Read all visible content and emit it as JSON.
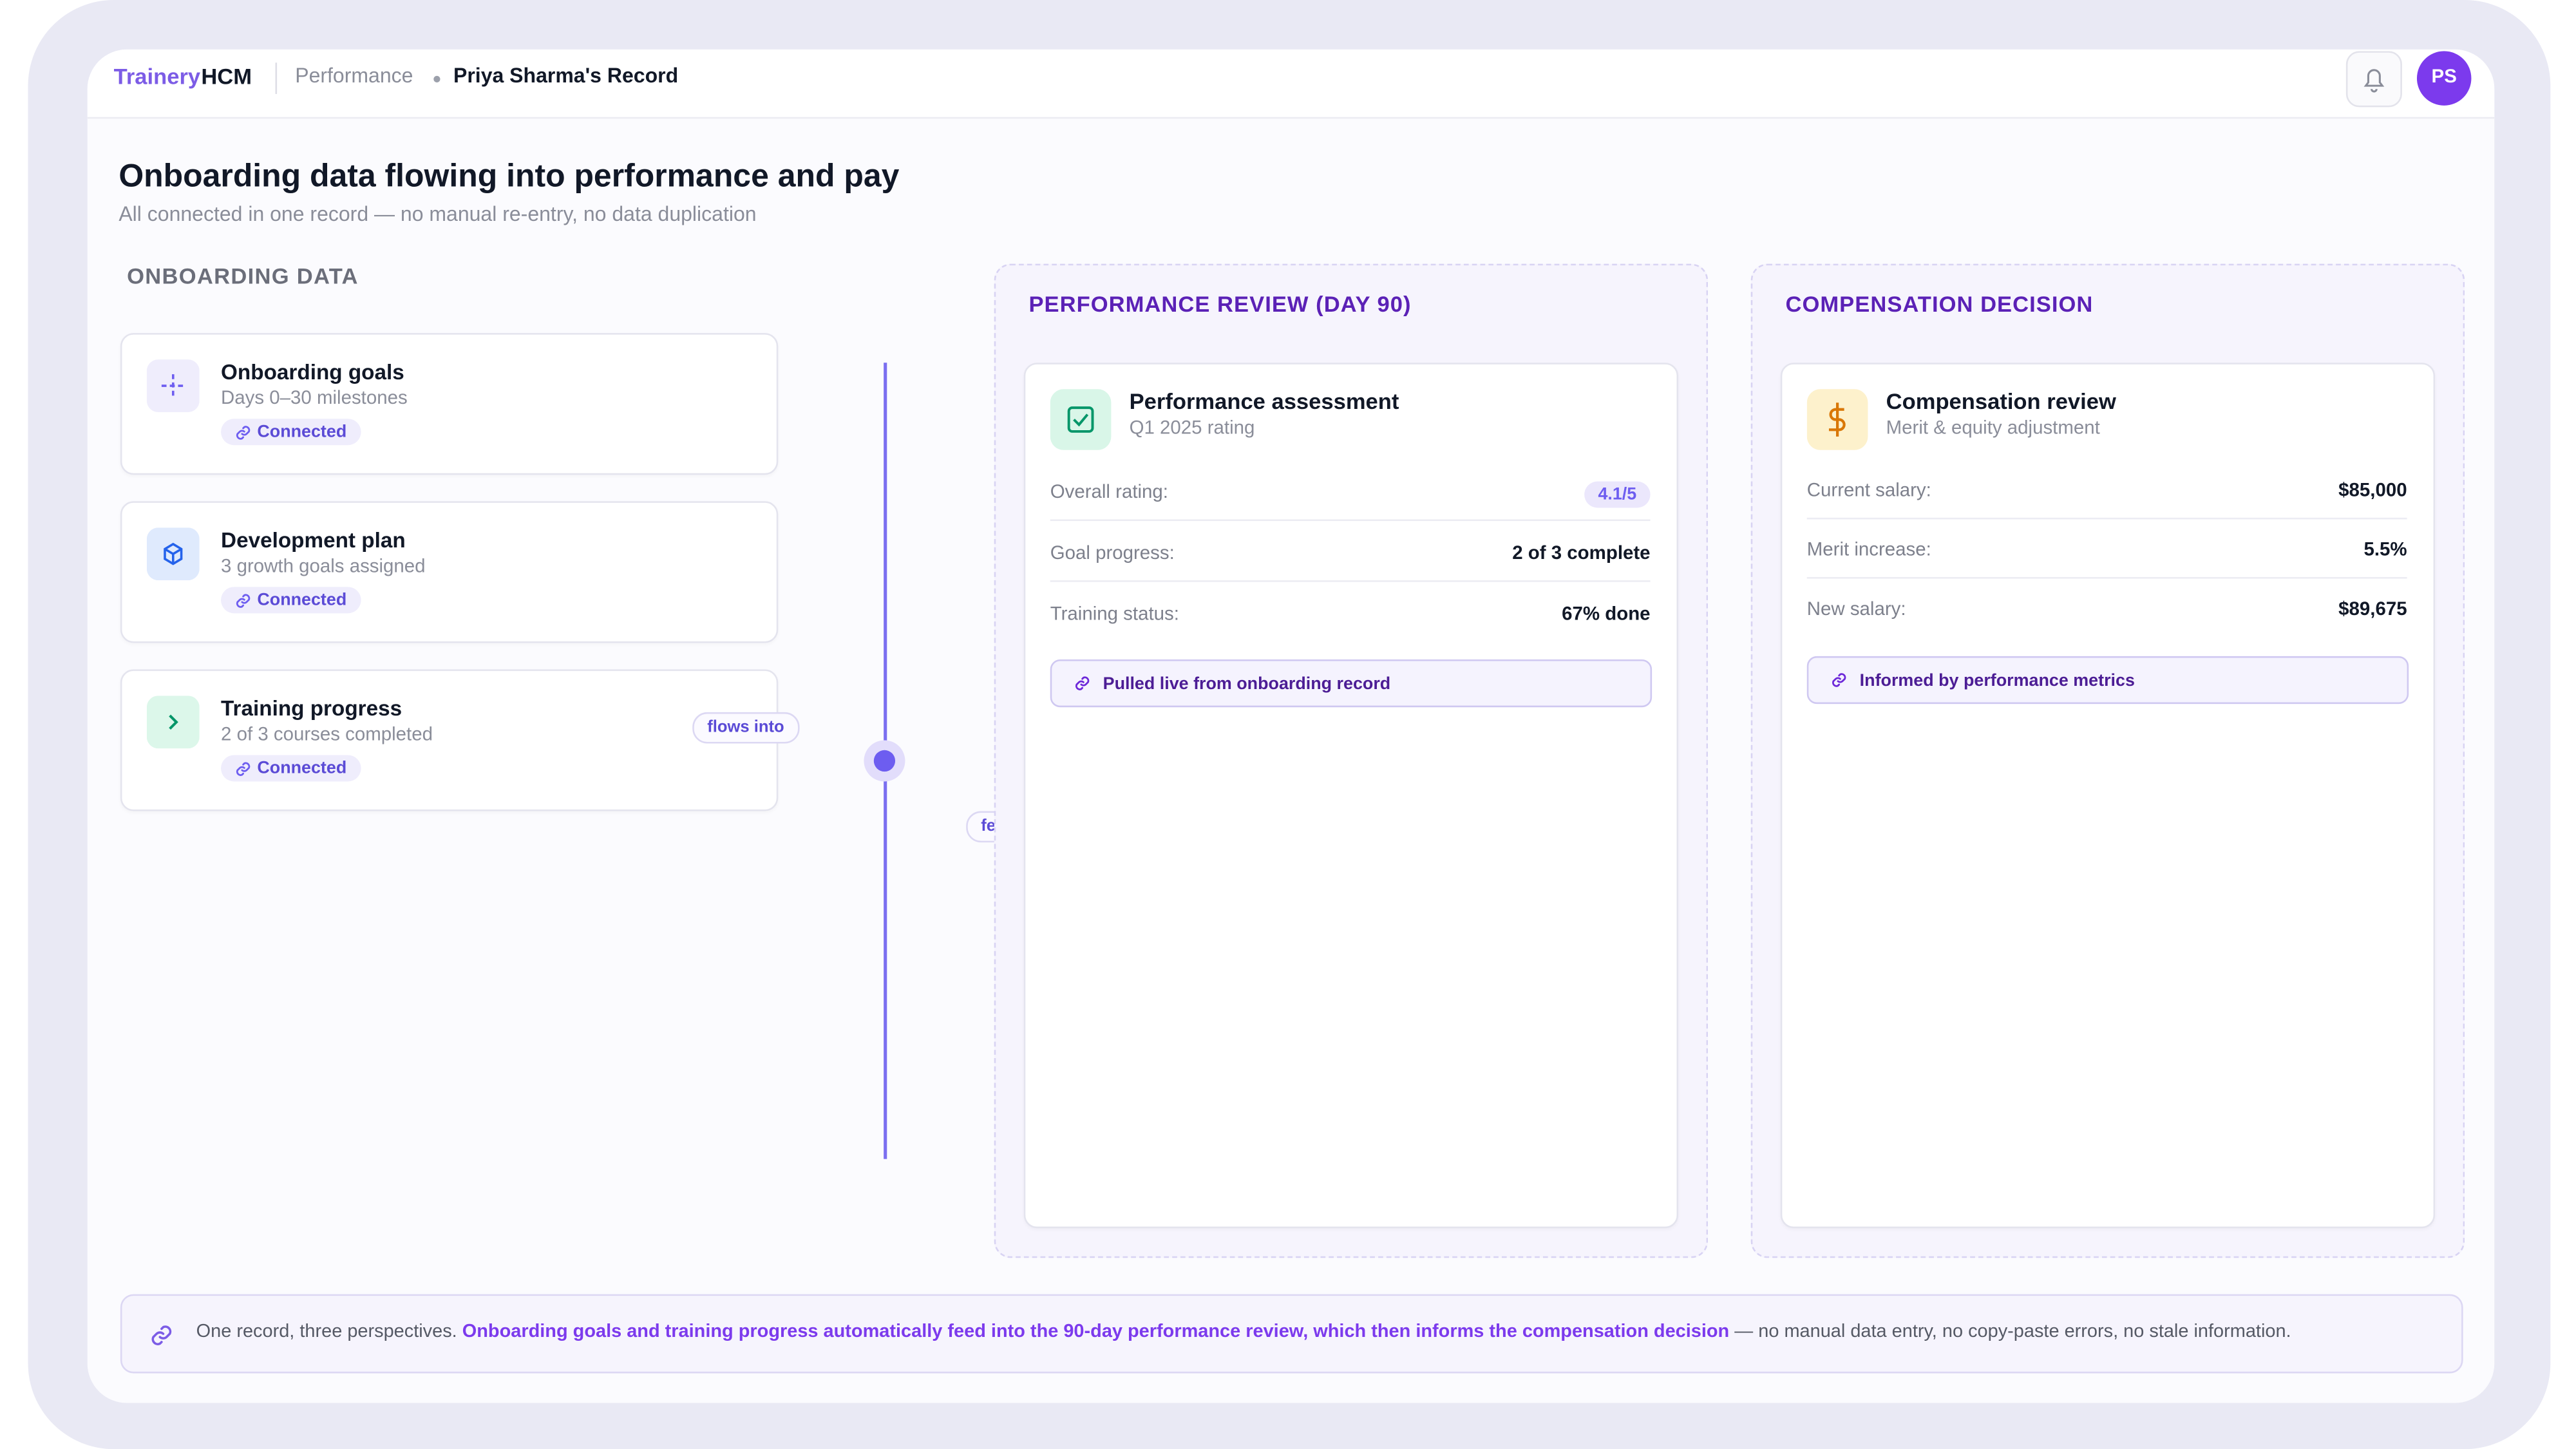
{
  "header": {
    "brand_left": "Trainery",
    "brand_right": "HCM",
    "breadcrumb": [
      "Performance",
      "Priya Sharma's Record"
    ],
    "avatar": "PS"
  },
  "page": {
    "title": "Onboarding data flowing into performance and pay",
    "subtitle": "All connected in one record — no manual re-entry, no data duplication"
  },
  "onboarding": {
    "heading": "ONBOARDING DATA",
    "cards": [
      {
        "title": "Onboarding goals",
        "subtitle": "Days 0–30 milestones",
        "badge": "Connected"
      },
      {
        "title": "Development plan",
        "subtitle": "3 growth goals assigned",
        "badge": "Connected"
      },
      {
        "title": "Training progress",
        "subtitle": "2 of 3 courses completed",
        "badge": "Connected"
      }
    ]
  },
  "connectors": {
    "flows": "flows into",
    "feeds": "feeds"
  },
  "performance": {
    "heading": "PERFORMANCE REVIEW (DAY 90)",
    "card_title": "Performance assessment",
    "card_subtitle": "Q1 2025 rating",
    "rows": [
      [
        "Overall rating:",
        "4.1/5"
      ],
      [
        "Goal progress:",
        "2 of 3 complete"
      ],
      [
        "Training status:",
        "67% done"
      ]
    ],
    "note": "Pulled live from onboarding record"
  },
  "compensation": {
    "heading": "COMPENSATION DECISION",
    "card_title": "Compensation review",
    "card_subtitle": "Merit & equity adjustment",
    "rows": [
      [
        "Current salary:",
        "$85,000"
      ],
      [
        "Merit increase:",
        "5.5%"
      ],
      [
        "New salary:",
        "$89,675"
      ]
    ],
    "note": "Informed by performance metrics"
  },
  "footer": {
    "lead": "One record, three perspectives.",
    "highlight": "Onboarding goals and training progress automatically feed into the 90-day performance review, which then informs the compensation decision",
    "rest": "— no manual data entry, no copy-paste errors, no stale information."
  }
}
